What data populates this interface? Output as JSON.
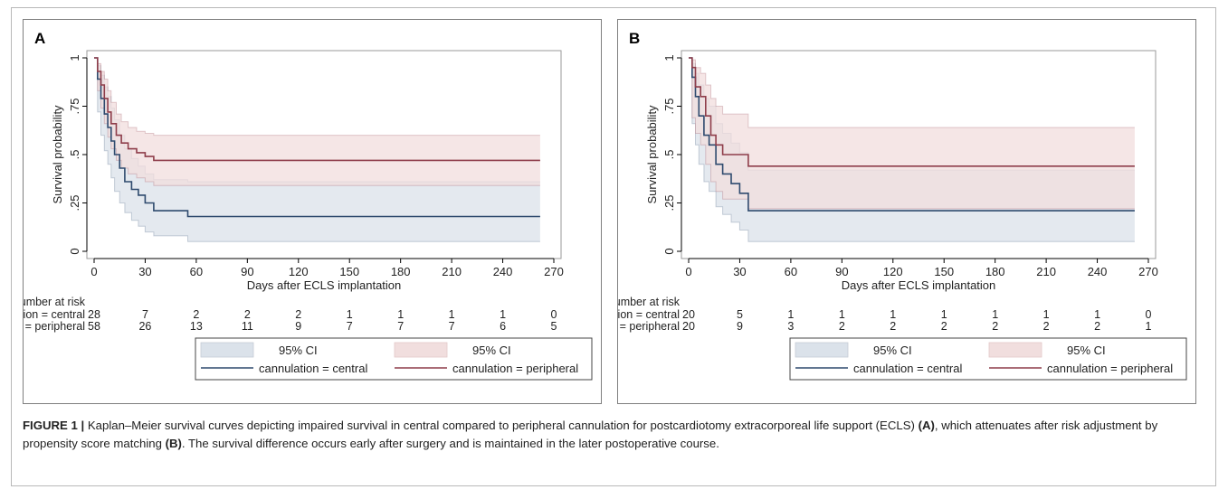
{
  "caption": {
    "figure_label": "FIGURE 1 |",
    "segments": [
      {
        "text": " Kaplan–Meier survival curves depicting impaired survival in central compared to peripheral cannulation for postcardiotomy extracorporeal life support (ECLS) ",
        "bold": false
      },
      {
        "text": "(A)",
        "bold": true
      },
      {
        "text": ", which attenuates after risk adjustment by propensity score matching ",
        "bold": false
      },
      {
        "text": "(B)",
        "bold": true
      },
      {
        "text": ". The survival difference occurs early after surgery and is maintained in the later postoperative course.",
        "bold": false
      }
    ]
  },
  "colors": {
    "central": "#2e4a6e",
    "central_ci": "#dbe2ea",
    "peripheral": "#8e3d4a",
    "peripheral_ci": "#f1dede"
  },
  "chart_data": [
    {
      "panel_label": "A",
      "type": "line",
      "step": true,
      "xlabel": "Days after ECLS implantation",
      "ylabel": "Survival probability",
      "xlim": [
        0,
        270
      ],
      "ylim": [
        0,
        1
      ],
      "x_ticks": [
        0,
        30,
        60,
        90,
        120,
        150,
        180,
        210,
        240,
        270
      ],
      "y_ticks": [
        {
          "value": 0,
          "label": "0"
        },
        {
          "value": 0.25,
          "label": ".25"
        },
        {
          "value": 0.5,
          "label": ".5"
        },
        {
          "value": 0.75,
          "label": ".75"
        },
        {
          "value": 1,
          "label": "1"
        }
      ],
      "grid": false,
      "series": [
        {
          "name": "cannulation = central",
          "key": "central",
          "x": [
            0,
            2,
            4,
            6,
            8,
            10,
            12,
            15,
            18,
            22,
            26,
            30,
            35,
            55,
            262
          ],
          "y": [
            1,
            0.89,
            0.79,
            0.71,
            0.64,
            0.57,
            0.5,
            0.43,
            0.36,
            0.32,
            0.29,
            0.25,
            0.21,
            0.18,
            0.18
          ],
          "ci_lower": [
            1,
            0.72,
            0.6,
            0.52,
            0.45,
            0.38,
            0.31,
            0.25,
            0.2,
            0.16,
            0.13,
            0.1,
            0.08,
            0.05,
            0.05
          ],
          "ci_upper": [
            1,
            0.96,
            0.91,
            0.85,
            0.8,
            0.74,
            0.68,
            0.6,
            0.53,
            0.48,
            0.44,
            0.4,
            0.37,
            0.36,
            0.36
          ]
        },
        {
          "name": "cannulation = peripheral",
          "key": "peripheral",
          "x": [
            0,
            2,
            4,
            6,
            8,
            10,
            13,
            16,
            20,
            25,
            30,
            35,
            42,
            262
          ],
          "y": [
            1,
            0.93,
            0.86,
            0.79,
            0.72,
            0.66,
            0.6,
            0.56,
            0.53,
            0.51,
            0.49,
            0.47,
            0.47,
            0.47
          ],
          "ci_lower": [
            1,
            0.83,
            0.74,
            0.66,
            0.59,
            0.53,
            0.47,
            0.43,
            0.4,
            0.38,
            0.36,
            0.34,
            0.34,
            0.34
          ],
          "ci_upper": [
            1,
            0.97,
            0.93,
            0.89,
            0.83,
            0.77,
            0.71,
            0.67,
            0.64,
            0.62,
            0.61,
            0.6,
            0.6,
            0.6
          ]
        }
      ],
      "risk_table": {
        "title": "Number at risk",
        "times": [
          0,
          30,
          60,
          90,
          120,
          150,
          180,
          210,
          240,
          270
        ],
        "rows": [
          {
            "label": "cannulation = central",
            "values": [
              "28",
              "7",
              "2",
              "2",
              "2",
              "1",
              "1",
              "1",
              "1",
              "0"
            ]
          },
          {
            "label": "cannulation = peripheral",
            "values": [
              "58",
              "26",
              "13",
              "11",
              "9",
              "7",
              "7",
              "7",
              "6",
              "5"
            ]
          }
        ]
      },
      "legend": {
        "ci_central": "95% CI",
        "ci_peripheral": "95% CI",
        "line_central": "cannulation = central",
        "line_peripheral": "cannulation = peripheral"
      }
    },
    {
      "panel_label": "B",
      "type": "line",
      "step": true,
      "xlabel": "Days after ECLS implantation",
      "ylabel": "Survival probability",
      "xlim": [
        0,
        270
      ],
      "ylim": [
        0,
        1
      ],
      "x_ticks": [
        0,
        30,
        60,
        90,
        120,
        150,
        180,
        210,
        240,
        270
      ],
      "y_ticks": [
        {
          "value": 0,
          "label": "0"
        },
        {
          "value": 0.25,
          "label": ".25"
        },
        {
          "value": 0.5,
          "label": ".5"
        },
        {
          "value": 0.75,
          "label": ".75"
        },
        {
          "value": 1,
          "label": "1"
        }
      ],
      "grid": false,
      "series": [
        {
          "name": "cannulation = central",
          "key": "central",
          "x": [
            0,
            2,
            4,
            6,
            9,
            12,
            16,
            20,
            25,
            30,
            35,
            262
          ],
          "y": [
            1,
            0.9,
            0.8,
            0.7,
            0.6,
            0.55,
            0.45,
            0.4,
            0.35,
            0.3,
            0.21,
            0.21
          ],
          "ci_lower": [
            1,
            0.66,
            0.55,
            0.45,
            0.36,
            0.31,
            0.23,
            0.19,
            0.15,
            0.11,
            0.05,
            0.05
          ],
          "ci_upper": [
            1,
            0.97,
            0.92,
            0.86,
            0.79,
            0.75,
            0.66,
            0.61,
            0.56,
            0.51,
            0.42,
            0.42
          ]
        },
        {
          "name": "cannulation = peripheral",
          "key": "peripheral",
          "x": [
            0,
            2,
            4,
            7,
            10,
            13,
            16,
            20,
            30,
            35,
            262
          ],
          "y": [
            1,
            0.95,
            0.85,
            0.8,
            0.7,
            0.6,
            0.55,
            0.5,
            0.5,
            0.44,
            0.44
          ],
          "ci_lower": [
            1,
            0.69,
            0.61,
            0.55,
            0.45,
            0.36,
            0.31,
            0.27,
            0.27,
            0.22,
            0.22
          ],
          "ci_upper": [
            1,
            0.99,
            0.95,
            0.92,
            0.86,
            0.79,
            0.75,
            0.71,
            0.71,
            0.64,
            0.64
          ]
        }
      ],
      "risk_table": {
        "title": "Number at risk",
        "times": [
          0,
          30,
          60,
          90,
          120,
          150,
          180,
          210,
          240,
          270
        ],
        "rows": [
          {
            "label": "cannulation = central",
            "values": [
              "20",
              "5",
              "1",
              "1",
              "1",
              "1",
              "1",
              "1",
              "1",
              "0"
            ]
          },
          {
            "label": "cannulation = peripheral",
            "values": [
              "20",
              "9",
              "3",
              "2",
              "2",
              "2",
              "2",
              "2",
              "2",
              "1"
            ]
          }
        ]
      },
      "legend": {
        "ci_central": "95% CI",
        "ci_peripheral": "95% CI",
        "line_central": "cannulation = central",
        "line_peripheral": "cannulation = peripheral"
      }
    }
  ]
}
